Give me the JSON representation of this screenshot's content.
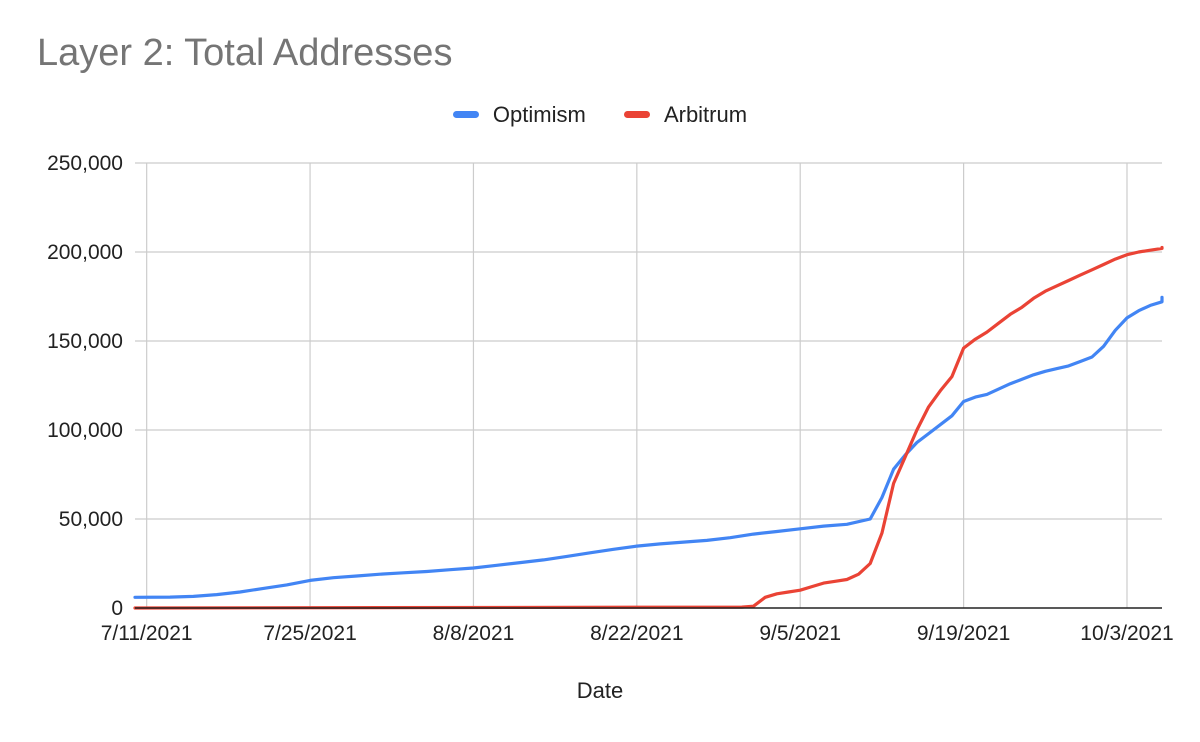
{
  "chart_data": {
    "type": "line",
    "title": "Layer 2: Total Addresses",
    "xlabel": "Date",
    "ylabel": "",
    "ylim": [
      0,
      250000
    ],
    "xlim": [
      "7/10/2021",
      "10/6/2021"
    ],
    "yticks": [
      0,
      50000,
      100000,
      150000,
      200000,
      250000
    ],
    "ytick_labels": [
      "0",
      "50,000",
      "100,000",
      "150,000",
      "200,000",
      "250,000"
    ],
    "xticks": [
      "7/11/2021",
      "7/25/2021",
      "8/8/2021",
      "8/22/2021",
      "9/5/2021",
      "9/19/2021",
      "10/3/2021"
    ],
    "grid": true,
    "legend_position": "top",
    "series": [
      {
        "name": "Optimism",
        "color": "#4285F4",
        "points": [
          [
            "7/10/2021",
            6000
          ],
          [
            "7/13/2021",
            6100
          ],
          [
            "7/15/2021",
            6500
          ],
          [
            "7/17/2021",
            7500
          ],
          [
            "7/19/2021",
            9000
          ],
          [
            "7/21/2021",
            11000
          ],
          [
            "7/23/2021",
            13000
          ],
          [
            "7/25/2021",
            15500
          ],
          [
            "7/27/2021",
            17000
          ],
          [
            "7/29/2021",
            18000
          ],
          [
            "7/31/2021",
            19000
          ],
          [
            "8/2/2021",
            19800
          ],
          [
            "8/4/2021",
            20500
          ],
          [
            "8/6/2021",
            21500
          ],
          [
            "8/8/2021",
            22500
          ],
          [
            "8/10/2021",
            24000
          ],
          [
            "8/12/2021",
            25500
          ],
          [
            "8/14/2021",
            27000
          ],
          [
            "8/16/2021",
            29000
          ],
          [
            "8/18/2021",
            31000
          ],
          [
            "8/20/2021",
            33000
          ],
          [
            "8/22/2021",
            34800
          ],
          [
            "8/24/2021",
            36000
          ],
          [
            "8/26/2021",
            37000
          ],
          [
            "8/28/2021",
            38000
          ],
          [
            "8/30/2021",
            39500
          ],
          [
            "9/1/2021",
            41500
          ],
          [
            "9/3/2021",
            43000
          ],
          [
            "9/5/2021",
            44500
          ],
          [
            "9/7/2021",
            46000
          ],
          [
            "9/9/2021",
            47000
          ],
          [
            "9/11/2021",
            50000
          ],
          [
            "9/12/2021",
            62000
          ],
          [
            "9/13/2021",
            78000
          ],
          [
            "9/14/2021",
            86000
          ],
          [
            "9/15/2021",
            93000
          ],
          [
            "9/16/2021",
            98000
          ],
          [
            "9/17/2021",
            103000
          ],
          [
            "9/18/2021",
            108000
          ],
          [
            "9/19/2021",
            116000
          ],
          [
            "9/20/2021",
            118500
          ],
          [
            "9/21/2021",
            120000
          ],
          [
            "9/22/2021",
            123000
          ],
          [
            "9/23/2021",
            126000
          ],
          [
            "9/24/2021",
            128500
          ],
          [
            "9/25/2021",
            131000
          ],
          [
            "9/26/2021",
            133000
          ],
          [
            "9/27/2021",
            134500
          ],
          [
            "9/28/2021",
            136000
          ],
          [
            "9/29/2021",
            138500
          ],
          [
            "9/30/2021",
            141000
          ],
          [
            "10/1/2021",
            147000
          ],
          [
            "10/2/2021",
            156000
          ],
          [
            "10/3/2021",
            163000
          ],
          [
            "10/4/2021",
            167000
          ],
          [
            "10/5/2021",
            170000
          ],
          [
            "10/6/2021",
            172000
          ],
          [
            "10/7/2021",
            174500
          ]
        ]
      },
      {
        "name": "Arbitrum",
        "color": "#EA4335",
        "points": [
          [
            "7/10/2021",
            0
          ],
          [
            "7/31/2021",
            200
          ],
          [
            "8/31/2021",
            500
          ],
          [
            "9/1/2021",
            1000
          ],
          [
            "9/2/2021",
            6000
          ],
          [
            "9/3/2021",
            8000
          ],
          [
            "9/4/2021",
            9000
          ],
          [
            "9/5/2021",
            10000
          ],
          [
            "9/6/2021",
            12000
          ],
          [
            "9/7/2021",
            14000
          ],
          [
            "9/8/2021",
            15000
          ],
          [
            "9/9/2021",
            16000
          ],
          [
            "9/10/2021",
            19000
          ],
          [
            "9/11/2021",
            25000
          ],
          [
            "9/12/2021",
            42000
          ],
          [
            "9/13/2021",
            70000
          ],
          [
            "9/14/2021",
            85000
          ],
          [
            "9/15/2021",
            100000
          ],
          [
            "9/16/2021",
            113000
          ],
          [
            "9/17/2021",
            122000
          ],
          [
            "9/18/2021",
            130000
          ],
          [
            "9/19/2021",
            146000
          ],
          [
            "9/20/2021",
            151000
          ],
          [
            "9/21/2021",
            155000
          ],
          [
            "9/22/2021",
            160000
          ],
          [
            "9/23/2021",
            165000
          ],
          [
            "9/24/2021",
            169000
          ],
          [
            "9/25/2021",
            174000
          ],
          [
            "9/26/2021",
            178000
          ],
          [
            "9/27/2021",
            181000
          ],
          [
            "9/28/2021",
            184000
          ],
          [
            "9/29/2021",
            187000
          ],
          [
            "9/30/2021",
            190000
          ],
          [
            "10/1/2021",
            193000
          ],
          [
            "10/2/2021",
            196000
          ],
          [
            "10/3/2021",
            198500
          ],
          [
            "10/4/2021",
            200000
          ],
          [
            "10/5/2021",
            201000
          ],
          [
            "10/6/2021",
            202000
          ],
          [
            "10/7/2021",
            202500
          ]
        ]
      }
    ]
  }
}
